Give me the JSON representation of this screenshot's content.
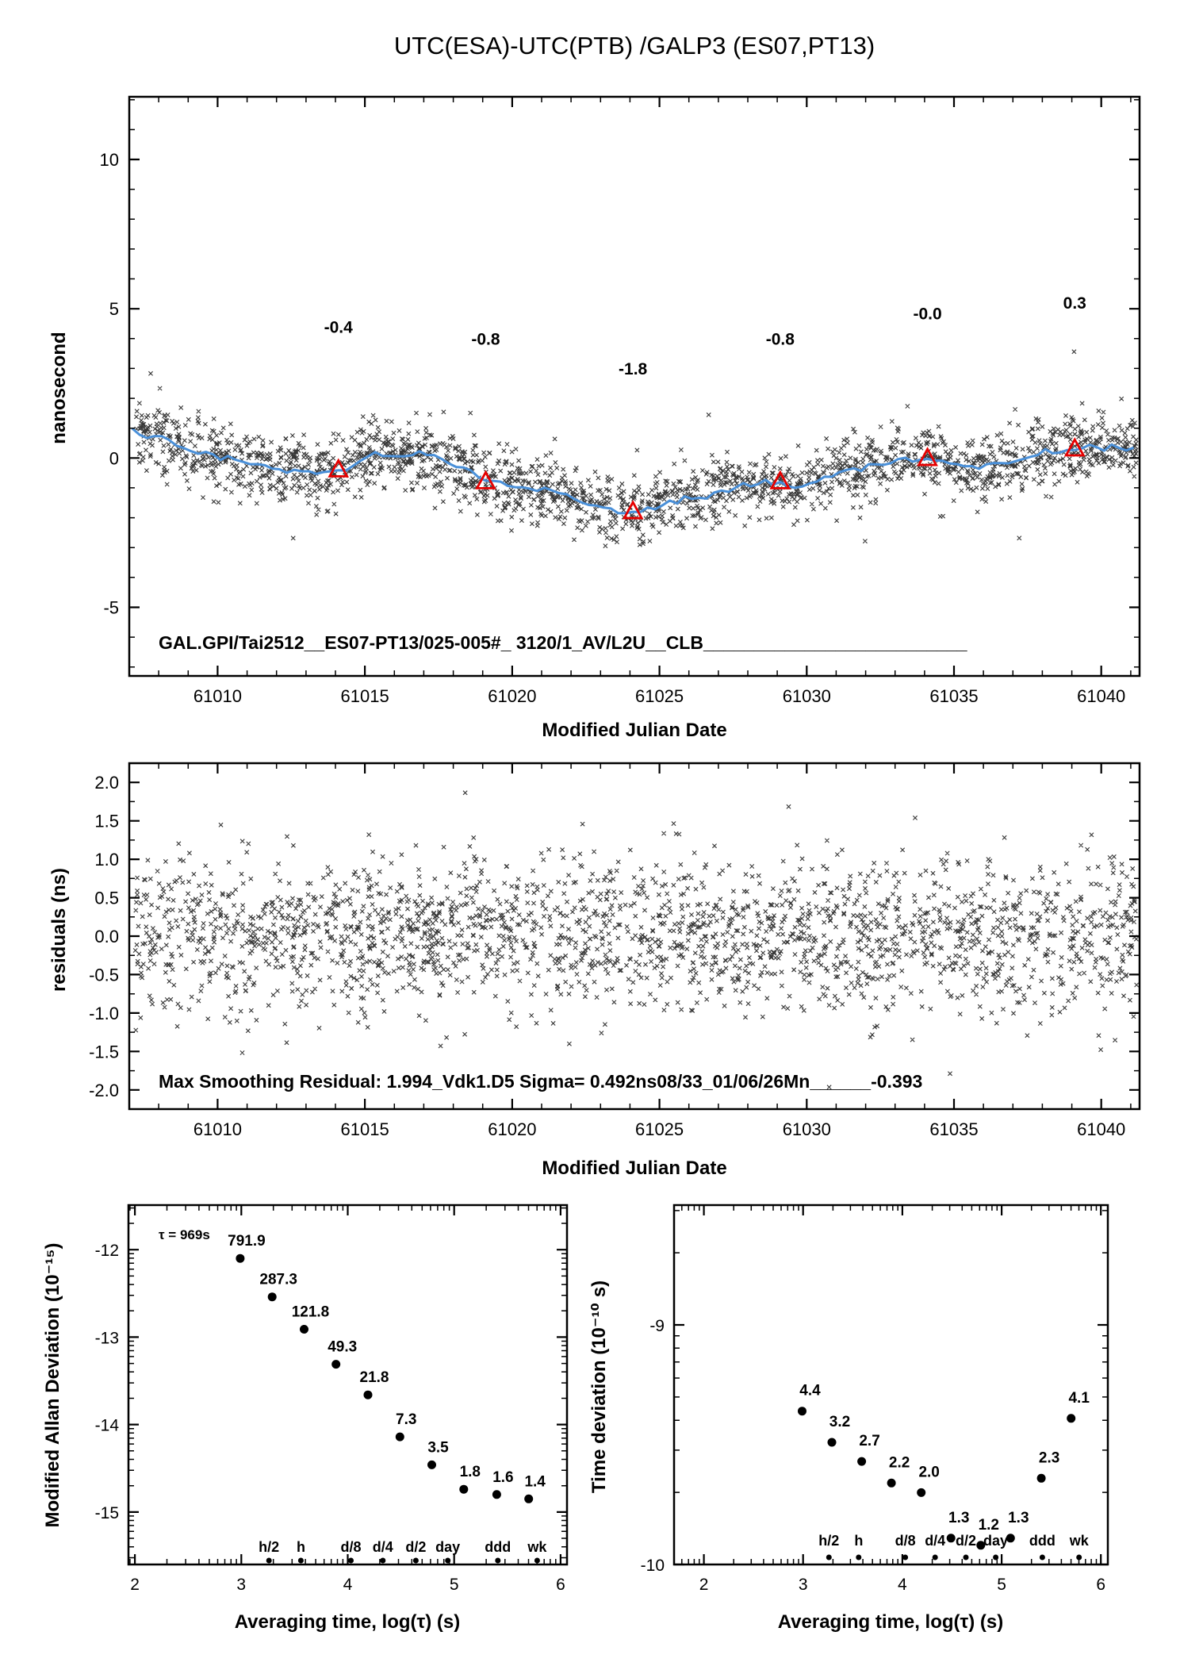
{
  "title": "UTC(ESA)-UTC(PTB)  /GALP3  (ES07,PT13)",
  "colors": {
    "red": "#e60000",
    "line_blue": "#4a90d9",
    "marker_black": "#000000"
  },
  "chart_data": [
    {
      "id": "phase",
      "type": "scatter",
      "title": "UTC(ESA)-UTC(PTB)  /GALP3  (ES07,PT13)",
      "xlabel": "Modified Julian Date",
      "ylabel": "nanosecond",
      "xlim": [
        61007.0,
        61041.3
      ],
      "ylim": [
        -7.3,
        12.1
      ],
      "xticks": [
        61010,
        61015,
        61020,
        61025,
        61030,
        61035,
        61040
      ],
      "xtick_labels": [
        "61010",
        "61015",
        "61020",
        "61025",
        "61030",
        "61035",
        "61040"
      ],
      "yticks": [
        -5,
        0,
        5,
        10
      ],
      "ytick_labels": [
        "-5",
        "0",
        "5",
        "10"
      ],
      "minor": {
        "x_step": 1,
        "y_step": 1
      },
      "annotation": "GAL.GPI/Tai2512__ES07-PT13/025-005#_  3120/1_AV/L2U__CLB__________________________",
      "scatter": {
        "n": 2300,
        "sigma": 0.55,
        "seed": 20101,
        "xmin": 61007.2,
        "xmax": 61041.2,
        "outlier_frac": 0.05,
        "outlier_sigma": 0.85
      },
      "smooth_line": {
        "seed": 777,
        "jitter": 0.06,
        "step": 0.25
      },
      "trend": [
        [
          61007.0,
          1.15
        ],
        [
          61007.3,
          0.8
        ],
        [
          61007.6,
          0.65
        ],
        [
          61008.0,
          0.82
        ],
        [
          61008.4,
          0.55
        ],
        [
          61008.8,
          0.3
        ],
        [
          61009.3,
          0.15
        ],
        [
          61009.8,
          0.1
        ],
        [
          61010.2,
          0.0
        ],
        [
          61010.8,
          -0.12
        ],
        [
          61011.4,
          -0.25
        ],
        [
          61012.0,
          -0.42
        ],
        [
          61012.6,
          -0.3
        ],
        [
          61013.2,
          -0.5
        ],
        [
          61013.8,
          -0.45
        ],
        [
          61014.1,
          -0.42
        ],
        [
          61014.6,
          -0.2
        ],
        [
          61015.1,
          0.08
        ],
        [
          61015.6,
          0.15
        ],
        [
          61016.1,
          0.02
        ],
        [
          61016.6,
          0.1
        ],
        [
          61017.1,
          0.15
        ],
        [
          61017.6,
          -0.12
        ],
        [
          61018.1,
          -0.2
        ],
        [
          61018.6,
          -0.5
        ],
        [
          61019.1,
          -0.72
        ],
        [
          61019.6,
          -0.78
        ],
        [
          61020.1,
          -1.0
        ],
        [
          61020.6,
          -1.05
        ],
        [
          61021.1,
          -0.95
        ],
        [
          61021.6,
          -1.18
        ],
        [
          61022.1,
          -1.32
        ],
        [
          61022.6,
          -1.5
        ],
        [
          61023.1,
          -1.65
        ],
        [
          61023.6,
          -1.78
        ],
        [
          61024.1,
          -1.85
        ],
        [
          61024.6,
          -1.72
        ],
        [
          61025.1,
          -1.55
        ],
        [
          61025.6,
          -1.45
        ],
        [
          61026.1,
          -1.38
        ],
        [
          61026.6,
          -1.28
        ],
        [
          61027.1,
          -1.12
        ],
        [
          61027.6,
          -0.95
        ],
        [
          61028.1,
          -0.88
        ],
        [
          61028.6,
          -0.85
        ],
        [
          61029.1,
          -0.9
        ],
        [
          61029.6,
          -0.95
        ],
        [
          61030.1,
          -0.82
        ],
        [
          61030.6,
          -0.62
        ],
        [
          61031.1,
          -0.45
        ],
        [
          61031.6,
          -0.36
        ],
        [
          61032.1,
          -0.3
        ],
        [
          61032.6,
          -0.2
        ],
        [
          61033.1,
          -0.1
        ],
        [
          61033.6,
          -0.05
        ],
        [
          61034.1,
          -0.04
        ],
        [
          61034.6,
          -0.12
        ],
        [
          61035.1,
          -0.26
        ],
        [
          61035.6,
          -0.3
        ],
        [
          61036.1,
          -0.22
        ],
        [
          61036.6,
          -0.12
        ],
        [
          61037.1,
          -0.02
        ],
        [
          61037.6,
          0.06
        ],
        [
          61038.1,
          0.15
        ],
        [
          61038.6,
          0.22
        ],
        [
          61039.1,
          0.3
        ],
        [
          61039.6,
          0.35
        ],
        [
          61040.1,
          0.3
        ],
        [
          61040.6,
          0.36
        ],
        [
          61041.2,
          0.42
        ]
      ],
      "triangles": [
        {
          "x": 61014.1,
          "y": -0.4,
          "label": "-0.4",
          "label_y": 4.2
        },
        {
          "x": 61019.1,
          "y": -0.8,
          "label": "-0.8",
          "label_y": 3.8
        },
        {
          "x": 61024.1,
          "y": -1.8,
          "label": "-1.8",
          "label_y": 2.8
        },
        {
          "x": 61029.1,
          "y": -0.8,
          "label": "-0.8",
          "label_y": 3.8
        },
        {
          "x": 61034.1,
          "y": -0.02,
          "label": "-0.0",
          "label_y": 4.65
        },
        {
          "x": 61039.1,
          "y": 0.3,
          "label": "0.3",
          "label_y": 5.0
        }
      ]
    },
    {
      "id": "residuals",
      "type": "scatter",
      "xlabel": "Modified Julian Date",
      "ylabel": "residuals (ns)",
      "xlim": [
        61007.0,
        61041.3
      ],
      "ylim": [
        -2.25,
        2.25
      ],
      "xticks": [
        61010,
        61015,
        61020,
        61025,
        61030,
        61035,
        61040
      ],
      "xtick_labels": [
        "61010",
        "61015",
        "61020",
        "61025",
        "61030",
        "61035",
        "61040"
      ],
      "yticks": [
        -2.0,
        -1.5,
        -1.0,
        -0.5,
        0.0,
        0.5,
        1.0,
        1.5,
        2.0
      ],
      "ytick_labels": [
        "-2.0",
        "-1.5",
        "-1.0",
        "-0.5",
        "0.0",
        "0.5",
        "1.0",
        "1.5",
        "2.0"
      ],
      "minor": {
        "x_step": 1,
        "y_step": 0.25
      },
      "annotation": "Max Smoothing Residual: 1.994_Vdk1.D5  Sigma= 0.492ns08/33_01/06/26Mn______-0.393",
      "scatter": {
        "n": 2300,
        "sigma": 0.5,
        "seed": 31415,
        "xmin": 61007.2,
        "xmax": 61041.2,
        "clip": 2.0
      }
    },
    {
      "id": "mdev",
      "type": "scatter",
      "xlabel": "Averaging time, log(τ) (s)",
      "ylabel": "Modified Allan Deviation (10⁻¹⁵)",
      "tau_note": "τ = 969s",
      "xlim": [
        1.94,
        6.06
      ],
      "ylim": [
        -15.6,
        -11.49
      ],
      "xticks": [
        2,
        3,
        4,
        5,
        6
      ],
      "xtick_labels": [
        "2",
        "3",
        "4",
        "5",
        "6"
      ],
      "yticks": [
        -15,
        -14,
        -13,
        -12
      ],
      "ytick_labels": [
        "-15",
        "-14",
        "-13",
        "-12"
      ],
      "minor": {
        "x_log": true,
        "y_log": true
      },
      "points": [
        {
          "x": 2.99,
          "y": -12.1,
          "label": "791.9"
        },
        {
          "x": 3.29,
          "y": -12.54,
          "label": "287.3"
        },
        {
          "x": 3.59,
          "y": -12.91,
          "label": "121.8"
        },
        {
          "x": 3.89,
          "y": -13.31,
          "label": "49.3"
        },
        {
          "x": 4.19,
          "y": -13.66,
          "label": "21.8"
        },
        {
          "x": 4.49,
          "y": -14.14,
          "label": "7.3"
        },
        {
          "x": 4.79,
          "y": -14.46,
          "label": "3.5"
        },
        {
          "x": 5.09,
          "y": -14.74,
          "label": "1.8"
        },
        {
          "x": 5.4,
          "y": -14.8,
          "label": "1.6"
        },
        {
          "x": 5.7,
          "y": -14.85,
          "label": "1.4"
        }
      ],
      "time_marks": [
        {
          "x": 3.26,
          "label": "h/2"
        },
        {
          "x": 3.56,
          "label": "h"
        },
        {
          "x": 4.03,
          "label": "d/8"
        },
        {
          "x": 4.33,
          "label": "d/4"
        },
        {
          "x": 4.64,
          "label": "d/2"
        },
        {
          "x": 4.94,
          "label": "day"
        },
        {
          "x": 5.41,
          "label": "ddd"
        },
        {
          "x": 5.78,
          "label": "wk"
        }
      ]
    },
    {
      "id": "tdev",
      "type": "scatter",
      "xlabel": "Averaging time, log(τ) (s)",
      "ylabel": "Time deviation (10⁻¹⁰ s)",
      "xlim": [
        1.7,
        6.07
      ],
      "ylim": [
        -10.0,
        -8.5
      ],
      "xticks": [
        2,
        3,
        4,
        5,
        6
      ],
      "xtick_labels": [
        "2",
        "3",
        "4",
        "5",
        "6"
      ],
      "yticks": [
        -10,
        -9
      ],
      "ytick_labels": [
        "-10",
        "-9"
      ],
      "minor": {
        "x_log": true,
        "y_log": true
      },
      "points": [
        {
          "x": 2.99,
          "y": -9.36,
          "label": "4.4"
        },
        {
          "x": 3.29,
          "y": -9.49,
          "label": "3.2"
        },
        {
          "x": 3.59,
          "y": -9.57,
          "label": "2.7"
        },
        {
          "x": 3.89,
          "y": -9.66,
          "label": "2.2"
        },
        {
          "x": 4.19,
          "y": -9.7,
          "label": "2.0"
        },
        {
          "x": 4.49,
          "y": -9.89,
          "label": "1.3"
        },
        {
          "x": 4.79,
          "y": -9.92,
          "label": "1.2"
        },
        {
          "x": 5.09,
          "y": -9.89,
          "label": "1.3"
        },
        {
          "x": 5.4,
          "y": -9.64,
          "label": "2.3"
        },
        {
          "x": 5.7,
          "y": -9.39,
          "label": "4.1"
        }
      ],
      "time_marks": [
        {
          "x": 3.26,
          "label": "h/2"
        },
        {
          "x": 3.56,
          "label": "h"
        },
        {
          "x": 4.03,
          "label": "d/8"
        },
        {
          "x": 4.33,
          "label": "d/4"
        },
        {
          "x": 4.64,
          "label": "d/2"
        },
        {
          "x": 4.94,
          "label": "day"
        },
        {
          "x": 5.41,
          "label": "ddd"
        },
        {
          "x": 5.78,
          "label": "wk"
        }
      ]
    }
  ]
}
